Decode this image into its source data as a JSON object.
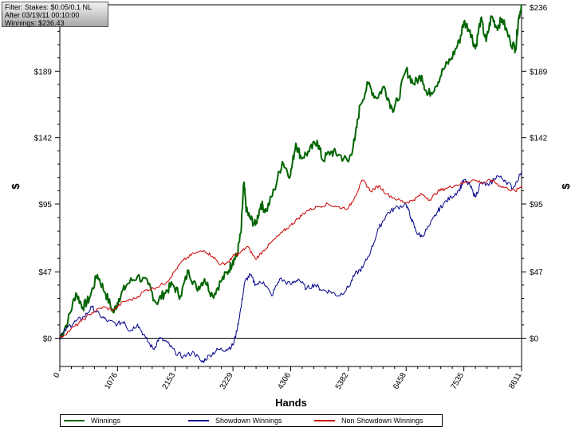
{
  "filter": {
    "line1": "Filter: Stakes: $0.05/0.1 NL",
    "line2": "After 03/19/11 00:10:00",
    "line3": "Winnings: $236.43"
  },
  "chart_data": {
    "type": "line",
    "xlabel": "Hands",
    "ylabel": "$",
    "xlim": [
      0,
      8611
    ],
    "ylim": [
      -20,
      236
    ],
    "x_ticks": [
      "0",
      "1076",
      "2153",
      "3229",
      "4306",
      "5382",
      "6458",
      "7535",
      "8611"
    ],
    "y_ticks_left": [
      "$0",
      "$47",
      "$95",
      "$142",
      "$189"
    ],
    "y_ticks_right": [
      "$0",
      "$47",
      "$95",
      "$142",
      "$189",
      "$236"
    ],
    "y_tick_values": [
      0,
      47,
      95,
      142,
      189,
      236
    ],
    "legend_position": "bottom",
    "series": [
      {
        "name": "Winnings",
        "color": "#006400",
        "points": [
          [
            0,
            0
          ],
          [
            150,
            12
          ],
          [
            300,
            32
          ],
          [
            430,
            22
          ],
          [
            550,
            28
          ],
          [
            700,
            45
          ],
          [
            850,
            32
          ],
          [
            1000,
            18
          ],
          [
            1100,
            28
          ],
          [
            1250,
            38
          ],
          [
            1450,
            44
          ],
          [
            1650,
            38
          ],
          [
            1800,
            25
          ],
          [
            1950,
            32
          ],
          [
            2100,
            38
          ],
          [
            2250,
            30
          ],
          [
            2400,
            48
          ],
          [
            2550,
            35
          ],
          [
            2700,
            42
          ],
          [
            2850,
            30
          ],
          [
            3000,
            40
          ],
          [
            3150,
            48
          ],
          [
            3229,
            55
          ],
          [
            3300,
            58
          ],
          [
            3380,
            75
          ],
          [
            3430,
            110
          ],
          [
            3480,
            90
          ],
          [
            3550,
            85
          ],
          [
            3650,
            80
          ],
          [
            3750,
            95
          ],
          [
            3850,
            90
          ],
          [
            4000,
            105
          ],
          [
            4150,
            125
          ],
          [
            4300,
            115
          ],
          [
            4400,
            138
          ],
          [
            4500,
            128
          ],
          [
            4650,
            132
          ],
          [
            4800,
            140
          ],
          [
            4900,
            126
          ],
          [
            5050,
            132
          ],
          [
            5200,
            130
          ],
          [
            5382,
            125
          ],
          [
            5500,
            140
          ],
          [
            5600,
            165
          ],
          [
            5750,
            180
          ],
          [
            5900,
            170
          ],
          [
            6050,
            178
          ],
          [
            6200,
            162
          ],
          [
            6300,
            168
          ],
          [
            6458,
            190
          ],
          [
            6600,
            180
          ],
          [
            6750,
            186
          ],
          [
            6850,
            172
          ],
          [
            7000,
            178
          ],
          [
            7150,
            190
          ],
          [
            7300,
            198
          ],
          [
            7450,
            210
          ],
          [
            7535,
            224
          ],
          [
            7650,
            218
          ],
          [
            7750,
            205
          ],
          [
            7850,
            226
          ],
          [
            7950,
            210
          ],
          [
            8050,
            228
          ],
          [
            8150,
            220
          ],
          [
            8250,
            226
          ],
          [
            8400,
            210
          ],
          [
            8500,
            205
          ],
          [
            8550,
            225
          ],
          [
            8611,
            236
          ]
        ]
      },
      {
        "name": "Showdown Winnings",
        "color": "#00008b",
        "points": [
          [
            0,
            0
          ],
          [
            150,
            8
          ],
          [
            300,
            12
          ],
          [
            450,
            15
          ],
          [
            600,
            22
          ],
          [
            750,
            16
          ],
          [
            900,
            12
          ],
          [
            1076,
            10
          ],
          [
            1200,
            12
          ],
          [
            1300,
            5
          ],
          [
            1450,
            10
          ],
          [
            1600,
            0
          ],
          [
            1750,
            -8
          ],
          [
            1850,
            0
          ],
          [
            2000,
            -3
          ],
          [
            2153,
            -10
          ],
          [
            2300,
            -13
          ],
          [
            2500,
            -10
          ],
          [
            2650,
            -17
          ],
          [
            2800,
            -12
          ],
          [
            2950,
            -8
          ],
          [
            3100,
            -8
          ],
          [
            3229,
            -5
          ],
          [
            3300,
            5
          ],
          [
            3380,
            22
          ],
          [
            3450,
            40
          ],
          [
            3550,
            45
          ],
          [
            3650,
            38
          ],
          [
            3800,
            40
          ],
          [
            3950,
            30
          ],
          [
            4100,
            42
          ],
          [
            4306,
            38
          ],
          [
            4450,
            42
          ],
          [
            4600,
            35
          ],
          [
            4750,
            38
          ],
          [
            4900,
            34
          ],
          [
            5050,
            33
          ],
          [
            5200,
            30
          ],
          [
            5382,
            36
          ],
          [
            5500,
            45
          ],
          [
            5650,
            50
          ],
          [
            5800,
            62
          ],
          [
            5950,
            78
          ],
          [
            6100,
            88
          ],
          [
            6250,
            92
          ],
          [
            6458,
            95
          ],
          [
            6550,
            85
          ],
          [
            6650,
            75
          ],
          [
            6750,
            72
          ],
          [
            6900,
            80
          ],
          [
            7050,
            90
          ],
          [
            7150,
            95
          ],
          [
            7300,
            100
          ],
          [
            7450,
            105
          ],
          [
            7535,
            112
          ],
          [
            7650,
            108
          ],
          [
            7750,
            100
          ],
          [
            7850,
            110
          ],
          [
            8000,
            108
          ],
          [
            8150,
            115
          ],
          [
            8300,
            112
          ],
          [
            8450,
            106
          ],
          [
            8611,
            118
          ]
        ]
      },
      {
        "name": "Non Showdown Winnings",
        "color": "#cc0000",
        "points": [
          [
            0,
            0
          ],
          [
            200,
            6
          ],
          [
            400,
            12
          ],
          [
            600,
            18
          ],
          [
            800,
            22
          ],
          [
            1000,
            20
          ],
          [
            1200,
            26
          ],
          [
            1400,
            28
          ],
          [
            1600,
            34
          ],
          [
            1800,
            36
          ],
          [
            2000,
            40
          ],
          [
            2153,
            48
          ],
          [
            2300,
            55
          ],
          [
            2500,
            60
          ],
          [
            2700,
            62
          ],
          [
            2850,
            58
          ],
          [
            3000,
            52
          ],
          [
            3150,
            54
          ],
          [
            3229,
            58
          ],
          [
            3350,
            60
          ],
          [
            3500,
            65
          ],
          [
            3650,
            56
          ],
          [
            3800,
            62
          ],
          [
            3950,
            68
          ],
          [
            4150,
            75
          ],
          [
            4306,
            80
          ],
          [
            4450,
            85
          ],
          [
            4600,
            90
          ],
          [
            4800,
            93
          ],
          [
            5000,
            95
          ],
          [
            5150,
            93
          ],
          [
            5382,
            92
          ],
          [
            5500,
            100
          ],
          [
            5650,
            112
          ],
          [
            5800,
            104
          ],
          [
            5950,
            108
          ],
          [
            6100,
            102
          ],
          [
            6300,
            98
          ],
          [
            6458,
            96
          ],
          [
            6600,
            98
          ],
          [
            6750,
            102
          ],
          [
            6900,
            98
          ],
          [
            7050,
            104
          ],
          [
            7200,
            106
          ],
          [
            7350,
            108
          ],
          [
            7535,
            110
          ],
          [
            7700,
            112
          ],
          [
            7900,
            110
          ],
          [
            8050,
            112
          ],
          [
            8200,
            108
          ],
          [
            8350,
            106
          ],
          [
            8500,
            104
          ],
          [
            8611,
            108
          ]
        ]
      }
    ]
  }
}
